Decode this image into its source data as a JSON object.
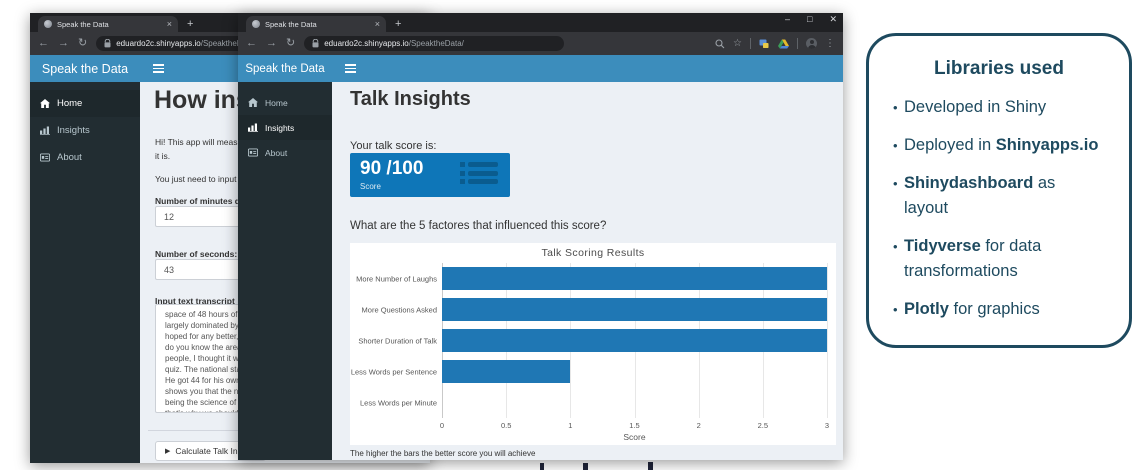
{
  "icons": {
    "back": "←",
    "forward": "→",
    "reload": "↻",
    "star": "☆",
    "menu": "⋮",
    "minimize": "–",
    "maximize": "□",
    "close": "✕",
    "new_tab": "+",
    "tab_close": "×",
    "play": "▶"
  },
  "colors": {
    "header_blue": "#3c8dbc",
    "sidebar_dark": "#222d32",
    "sidebar_active": "#1e282c",
    "content_bg": "#ecf0f5",
    "valuebox_blue": "#0e76b8",
    "bar_blue": "#1f77b4",
    "callout_navy": "#1e4a5f",
    "chrome_dark": "#202124",
    "chrome_toolbar": "#35363a"
  },
  "window1": {
    "tab_title": "Speak the Data",
    "url_host": "eduardo2c.shinyapps.io",
    "url_path": "/SpeaktheData/",
    "app_title": "Speak the Data",
    "sidebar": {
      "items": [
        {
          "label": "Home",
          "active": true
        },
        {
          "label": "Insights",
          "active": false
        },
        {
          "label": "About",
          "active": false
        }
      ]
    },
    "page": {
      "heading": "How inspir",
      "intro1": "Hi! This app will measure\nit is.",
      "intro2": "You just need to input the",
      "minutes_label": "Number of minutes dura",
      "minutes_value": "12",
      "seconds_label": "Number of seconds:",
      "seconds_value": "43",
      "transcript_label": "Input text transcript",
      "transcript": "space of 48 hours of lau\nlargely dominated by pe\nhoped for any better, in\ndo you know the area yo\npeople, I thought it wou\nquiz. The national statis\nHe got 44 for his own an\nshows you that the num\nbeing the science of und\nthat's why we should be",
      "button_label": "Calculate Talk Insight"
    }
  },
  "window2": {
    "tab_title": "Speak the Data",
    "url_host": "eduardo2c.shinyapps.io",
    "url_path": "/SpeaktheData/",
    "app_title": "Speak the Data",
    "sidebar": {
      "items": [
        {
          "label": "Home",
          "active": false
        },
        {
          "label": "Insights",
          "active": true
        },
        {
          "label": "About",
          "active": false
        }
      ]
    },
    "page": {
      "heading": "Talk Insights",
      "score_label": "Your talk score is:",
      "score_value": "90 /100",
      "score_sub": "Score",
      "question": "What are the 5 factores that influenced this score?",
      "footnote": "The higher the bars the better score you will achieve"
    }
  },
  "chart_data": {
    "type": "bar",
    "orientation": "horizontal",
    "title": "Talk Scoring Results",
    "categories": [
      "More Number of Laughs",
      "More Questions Asked",
      "Shorter Duration of Talk",
      "Less Words per Sentence",
      "Less Words per Minute"
    ],
    "values": [
      3,
      3,
      3,
      1,
      0
    ],
    "xlabel": "Score",
    "xlim": [
      0,
      3
    ],
    "xticks": [
      0,
      0.5,
      1,
      1.5,
      2,
      2.5,
      3
    ],
    "bar_color": "#1f77b4",
    "grid": true,
    "legend": false
  },
  "callout": {
    "title": "Libraries used",
    "items": [
      {
        "pre": "Developed in Shiny",
        "bold": "",
        "post": ""
      },
      {
        "pre": "Deployed in ",
        "bold": "Shinyapps.io",
        "post": ""
      },
      {
        "pre": "",
        "bold": "Shinydashboard",
        "post": " as\nlayout"
      },
      {
        "pre": "",
        "bold": "Tidyverse",
        "post": " for data\ntransformations"
      },
      {
        "pre": "",
        "bold": "Plotly",
        "post": " for graphics"
      }
    ]
  }
}
